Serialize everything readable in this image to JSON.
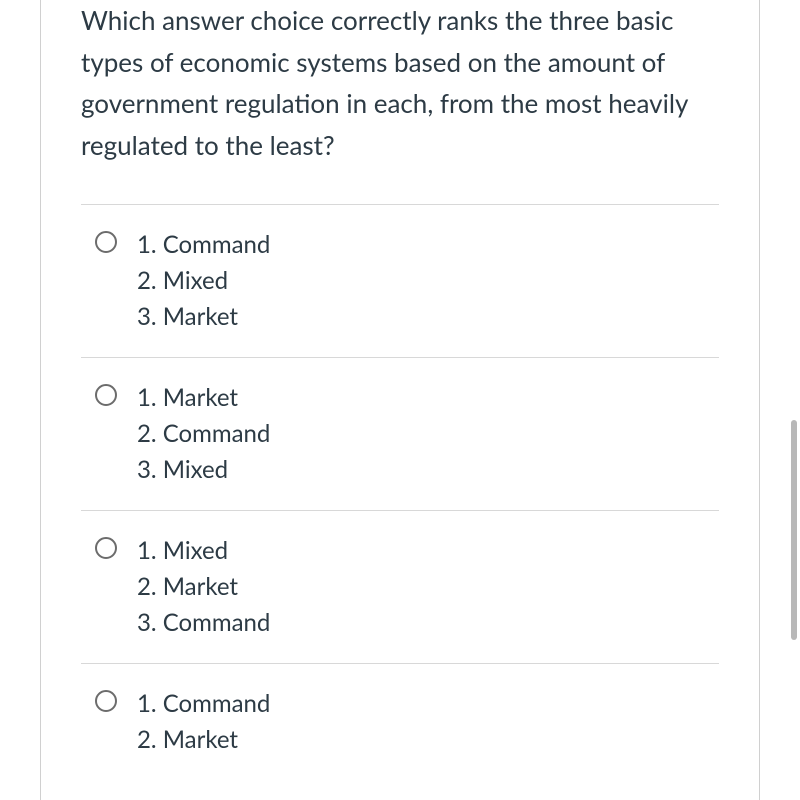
{
  "question": {
    "text": "Which answer choice correctly ranks the three basic types of economic systems based on the amount of government regulation in each, from the most heavily regulated to the least?"
  },
  "options": [
    {
      "lines": [
        "1. Command",
        "2. Mixed",
        "3. Market"
      ]
    },
    {
      "lines": [
        "1. Market",
        "2. Command",
        "3. Mixed"
      ]
    },
    {
      "lines": [
        "1. Mixed",
        "2. Market",
        "3. Command"
      ]
    },
    {
      "lines": [
        "1. Command",
        "2. Market"
      ]
    }
  ],
  "colors": {
    "text": "#2d3b45",
    "border": "#d0d0d0",
    "divider": "#d8d8d8",
    "radio_border": "#6c6c6c",
    "scrollbar": "#b8b8b8",
    "background": "#ffffff"
  }
}
